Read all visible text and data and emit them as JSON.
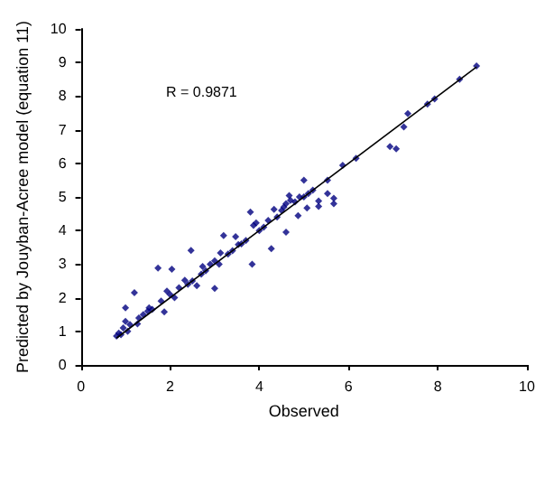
{
  "chart_data": {
    "type": "scatter",
    "xlabel": "Observed",
    "ylabel": "Predicted by Jouyban-Acree model (equation 11)",
    "annotations": [
      "R = 0.9871"
    ],
    "xlim": [
      0,
      10
    ],
    "ylim": [
      0,
      10
    ],
    "xticks": [
      0,
      2,
      4,
      6,
      8,
      10
    ],
    "yticks": [
      0,
      1,
      2,
      3,
      4,
      5,
      6,
      7,
      8,
      9,
      10
    ],
    "grid": false,
    "marker": "diamond",
    "series": [
      {
        "color": "#000080",
        "x": [
          0.8,
          0.85,
          0.9,
          0.95,
          1.0,
          1.05,
          1.1,
          1.0,
          1.2,
          1.27,
          1.3,
          1.4,
          1.5,
          1.53,
          1.6,
          1.73,
          1.8,
          1.87,
          1.93,
          2.0,
          2.04,
          2.1,
          2.2,
          2.33,
          2.4,
          2.47,
          2.5,
          2.6,
          2.7,
          2.73,
          2.8,
          2.9,
          3.0,
          3.0,
          3.1,
          3.13,
          3.2,
          3.3,
          3.4,
          3.47,
          3.53,
          3.6,
          3.7,
          3.8,
          3.84,
          3.87,
          3.93,
          4.0,
          4.1,
          4.2,
          4.27,
          4.33,
          4.4,
          4.5,
          4.55,
          4.6,
          4.6,
          4.67,
          4.7,
          4.8,
          4.87,
          4.9,
          5.0,
          5.0,
          5.07,
          5.1,
          5.2,
          5.33,
          5.33,
          5.53,
          5.53,
          5.67,
          5.67,
          5.87,
          6.17,
          6.93,
          7.07,
          7.24,
          7.33,
          7.77,
          7.93,
          8.49,
          8.87
        ],
        "values": [
          0.86,
          0.95,
          0.9,
          1.1,
          1.7,
          1.0,
          1.2,
          1.3,
          2.15,
          1.22,
          1.4,
          1.5,
          1.6,
          1.7,
          1.65,
          2.88,
          1.9,
          1.58,
          2.2,
          2.1,
          2.85,
          2.0,
          2.3,
          2.52,
          2.4,
          3.41,
          2.5,
          2.36,
          2.7,
          2.93,
          2.8,
          3.0,
          2.28,
          3.1,
          3.0,
          3.33,
          3.85,
          3.3,
          3.4,
          3.82,
          3.58,
          3.6,
          3.7,
          4.55,
          3.0,
          4.15,
          4.23,
          4.0,
          4.1,
          4.3,
          3.46,
          4.63,
          4.4,
          4.6,
          4.7,
          3.95,
          4.8,
          5.04,
          4.9,
          4.85,
          4.44,
          5.0,
          5.0,
          5.5,
          4.67,
          5.1,
          5.2,
          4.88,
          4.72,
          5.1,
          5.5,
          4.96,
          4.8,
          5.94,
          6.15,
          6.5,
          6.43,
          7.08,
          7.48,
          7.76,
          7.92,
          8.5,
          8.9
        ]
      },
      {
        "type": "line",
        "color": "#000000",
        "marker": "none",
        "x": [
          0.8,
          8.87
        ],
        "values": [
          0.8,
          8.87
        ]
      }
    ]
  }
}
